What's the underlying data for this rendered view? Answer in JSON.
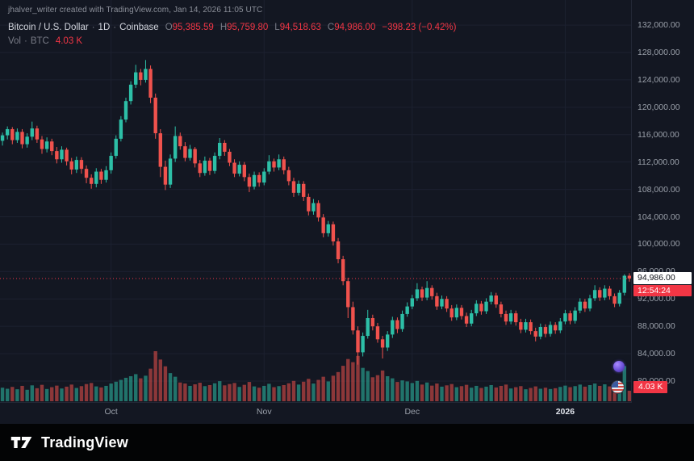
{
  "attribution": "jhalver_writer created with TradingView.com, Jan 14, 2026 11:05 UTC",
  "legend": {
    "symbol": "Bitcoin / U.S. Dollar",
    "separator": "·",
    "interval": "1D",
    "exchange": "Coinbase",
    "ohlc": [
      {
        "label": "O",
        "value": "95,385.59"
      },
      {
        "label": "H",
        "value": "95,759.80"
      },
      {
        "label": "L",
        "value": "94,518.63"
      },
      {
        "label": "C",
        "value": "94,986.00"
      }
    ],
    "change": "−398.23 (−0.42%)",
    "volume_label": "Vol",
    "volume_symbol": "BTC",
    "volume_value": "4.03 K"
  },
  "badges": {
    "last_price": "94,986.00",
    "countdown": "12:54:24",
    "volume": "4.03 K"
  },
  "footer": {
    "brand": "TradingView"
  },
  "icons": {
    "event_markers": [
      {
        "name": "crypto-event-icon",
        "color": "#6b4fd8"
      },
      {
        "name": "us-economic-event-icon",
        "colors": [
          "#cf4a44",
          "#e8edf2",
          "#3c5ba0"
        ]
      }
    ],
    "brand_logo": "tradingview-17-logo"
  },
  "colors": {
    "background": "#131722",
    "footer_background": "#030405",
    "candle_up": "#2dbfa7",
    "candle_down": "#f0524d",
    "value_down_text": "#f23645",
    "grid": "#1c2130",
    "axis_text": "#9aa0aa",
    "legend_text": "#d1d4dc",
    "muted_text": "#787b86",
    "last_price_line": "#f23645",
    "price_badge_bg": "#ffffff",
    "countdown_badge_bg": "#f23645",
    "volume_badge_bg": "#f23645"
  },
  "chart_data": {
    "type": "candlestick",
    "symbol": "Bitcoin / U.S. Dollar",
    "interval": "1D",
    "exchange": "Coinbase",
    "units": {
      "price": "USD thousands",
      "volume": "K BTC"
    },
    "visible_price_range": [
      76818,
      135665
    ],
    "price_ticks": [
      {
        "value": 132000,
        "label": "132,000.00"
      },
      {
        "value": 128000,
        "label": "128,000.00"
      },
      {
        "value": 124000,
        "label": "124,000.00"
      },
      {
        "value": 120000,
        "label": "120,000.00"
      },
      {
        "value": 116000,
        "label": "116,000.00"
      },
      {
        "value": 112000,
        "label": "112,000.00"
      },
      {
        "value": 108000,
        "label": "108,000.00"
      },
      {
        "value": 104000,
        "label": "104,000.00"
      },
      {
        "value": 100000,
        "label": "100,000.00"
      },
      {
        "value": 96000,
        "label": "96,000.00"
      },
      {
        "value": 92000,
        "label": "92,000.00"
      },
      {
        "value": 88000,
        "label": "88,000.00"
      },
      {
        "value": 84000,
        "label": "84,000.00"
      },
      {
        "value": 80000,
        "label": "80,000.00"
      }
    ],
    "months": [
      {
        "text": "Oct",
        "index": 22
      },
      {
        "text": "Nov",
        "index": 53
      },
      {
        "text": "Dec",
        "index": 83
      },
      {
        "text": "2026",
        "index": 114,
        "emphasis": true
      }
    ],
    "last_price": 94986,
    "last_candle": {
      "o": 95385.59,
      "h": 95759.8,
      "l": 94518.63,
      "c": 94986.0,
      "change": -398.23,
      "change_pct": -0.42
    },
    "countdown": "12:54:24",
    "last_volume_k": 4.03,
    "candles": [
      [
        115.1,
        116.3,
        114.4,
        115.9,
        5.2
      ],
      [
        115.9,
        117.2,
        115.3,
        116.8,
        4.8
      ],
      [
        116.8,
        117.1,
        114.6,
        115.2,
        5.5
      ],
      [
        115.2,
        116.9,
        114.8,
        116.4,
        4.6
      ],
      [
        116.4,
        116.8,
        114.0,
        114.6,
        5.9
      ],
      [
        114.6,
        116.2,
        114.1,
        115.7,
        4.4
      ],
      [
        115.7,
        117.9,
        115.2,
        116.9,
        6.1
      ],
      [
        116.9,
        117.3,
        114.8,
        115.3,
        5.0
      ],
      [
        115.3,
        115.8,
        113.2,
        113.9,
        6.3
      ],
      [
        113.9,
        115.6,
        113.4,
        115.0,
        4.7
      ],
      [
        115.0,
        115.4,
        113.0,
        113.6,
        5.4
      ],
      [
        113.6,
        114.2,
        111.8,
        112.4,
        6.0
      ],
      [
        112.4,
        114.3,
        111.9,
        113.8,
        4.9
      ],
      [
        113.8,
        114.1,
        111.5,
        112.1,
        5.6
      ],
      [
        112.1,
        112.6,
        110.2,
        110.9,
        6.4
      ],
      [
        110.9,
        112.8,
        110.4,
        112.3,
        5.1
      ],
      [
        112.3,
        112.7,
        110.3,
        111.0,
        5.8
      ],
      [
        111.0,
        111.5,
        108.9,
        109.7,
        6.6
      ],
      [
        109.7,
        110.2,
        108.1,
        108.8,
        7.0
      ],
      [
        108.8,
        111.1,
        108.3,
        110.6,
        5.7
      ],
      [
        110.6,
        111.0,
        108.8,
        109.4,
        5.3
      ],
      [
        109.4,
        111.4,
        109.0,
        110.8,
        5.9
      ],
      [
        110.8,
        113.4,
        110.3,
        112.9,
        6.8
      ],
      [
        112.9,
        115.9,
        112.5,
        115.4,
        7.5
      ],
      [
        115.4,
        118.7,
        115.0,
        118.2,
        8.2
      ],
      [
        118.2,
        121.4,
        117.8,
        120.9,
        9.0
      ],
      [
        120.9,
        123.8,
        120.4,
        123.3,
        9.6
      ],
      [
        123.3,
        126.2,
        122.8,
        125.1,
        10.4
      ],
      [
        125.1,
        125.6,
        123.2,
        124.0,
        8.8
      ],
      [
        124.0,
        126.9,
        123.6,
        125.6,
        9.8
      ],
      [
        125.6,
        126.1,
        120.6,
        121.4,
        12.5
      ],
      [
        121.4,
        122.0,
        115.4,
        116.2,
        19.2
      ],
      [
        116.2,
        116.8,
        109.8,
        111.3,
        16.0
      ],
      [
        111.3,
        112.2,
        107.9,
        108.7,
        13.4
      ],
      [
        108.7,
        113.1,
        108.2,
        112.5,
        10.8
      ],
      [
        112.5,
        117.2,
        112.0,
        115.8,
        9.4
      ],
      [
        115.8,
        116.3,
        113.8,
        114.3,
        7.2
      ],
      [
        114.3,
        114.9,
        112.1,
        112.6,
        6.8
      ],
      [
        112.6,
        114.5,
        112.2,
        113.9,
        5.9
      ],
      [
        113.9,
        114.2,
        111.2,
        111.8,
        6.5
      ],
      [
        111.8,
        112.3,
        109.8,
        110.4,
        7.1
      ],
      [
        110.4,
        112.8,
        110.0,
        112.2,
        5.8
      ],
      [
        112.2,
        112.6,
        110.1,
        110.7,
        6.2
      ],
      [
        110.7,
        113.4,
        110.3,
        112.9,
        6.9
      ],
      [
        112.9,
        115.5,
        112.4,
        114.8,
        7.7
      ],
      [
        114.8,
        115.2,
        112.9,
        113.5,
        6.1
      ],
      [
        113.5,
        113.9,
        111.4,
        111.9,
        6.6
      ],
      [
        111.9,
        112.4,
        109.8,
        110.3,
        7.0
      ],
      [
        110.3,
        112.1,
        109.9,
        111.6,
        5.5
      ],
      [
        111.6,
        112.0,
        109.2,
        109.8,
        6.3
      ],
      [
        109.8,
        110.3,
        107.6,
        108.4,
        7.4
      ],
      [
        108.4,
        110.6,
        108.0,
        110.1,
        5.7
      ],
      [
        110.1,
        110.5,
        108.4,
        109.0,
        5.2
      ],
      [
        109.0,
        111.1,
        108.6,
        110.6,
        5.9
      ],
      [
        110.6,
        113.0,
        110.2,
        112.1,
        6.7
      ],
      [
        112.1,
        112.5,
        110.6,
        111.2,
        5.4
      ],
      [
        111.2,
        113.1,
        110.8,
        112.4,
        5.8
      ],
      [
        112.4,
        112.8,
        110.2,
        110.8,
        6.2
      ],
      [
        110.8,
        111.3,
        108.6,
        109.2,
        6.9
      ],
      [
        109.2,
        109.7,
        106.9,
        107.5,
        7.8
      ],
      [
        107.5,
        109.3,
        107.1,
        108.8,
        6.4
      ],
      [
        108.8,
        109.2,
        106.3,
        106.9,
        7.5
      ],
      [
        106.9,
        107.4,
        104.2,
        104.8,
        8.6
      ],
      [
        104.8,
        106.6,
        104.3,
        106.0,
        6.8
      ],
      [
        106.0,
        106.4,
        103.3,
        103.9,
        8.2
      ],
      [
        103.9,
        104.4,
        101.0,
        101.6,
        9.4
      ],
      [
        101.6,
        103.4,
        101.1,
        102.9,
        7.6
      ],
      [
        102.9,
        103.3,
        99.8,
        100.4,
        9.8
      ],
      [
        100.4,
        100.9,
        97.2,
        97.8,
        11.2
      ],
      [
        97.8,
        98.3,
        94.0,
        94.6,
        13.6
      ],
      [
        94.6,
        95.1,
        89.2,
        90.8,
        16.2
      ],
      [
        90.8,
        91.6,
        86.8,
        87.4,
        15.0
      ],
      [
        87.4,
        88.0,
        82.4,
        84.2,
        17.4
      ],
      [
        84.2,
        87.1,
        83.6,
        86.6,
        12.8
      ],
      [
        86.6,
        90.4,
        86.2,
        89.2,
        11.6
      ],
      [
        89.2,
        89.7,
        87.4,
        88.0,
        9.2
      ],
      [
        88.0,
        88.5,
        85.6,
        86.1,
        10.0
      ],
      [
        86.1,
        86.6,
        83.3,
        84.9,
        11.8
      ],
      [
        84.9,
        87.3,
        84.4,
        86.8,
        9.6
      ],
      [
        86.8,
        89.4,
        86.3,
        88.9,
        8.8
      ],
      [
        88.9,
        89.3,
        87.0,
        87.6,
        7.4
      ],
      [
        87.6,
        90.3,
        87.2,
        89.8,
        8.0
      ],
      [
        89.8,
        91.5,
        89.4,
        90.9,
        7.6
      ],
      [
        90.9,
        92.6,
        90.5,
        92.1,
        7.0
      ],
      [
        92.1,
        94.3,
        91.7,
        93.4,
        7.8
      ],
      [
        93.4,
        93.8,
        91.7,
        92.2,
        6.4
      ],
      [
        92.2,
        94.6,
        91.8,
        93.6,
        7.2
      ],
      [
        93.6,
        94.0,
        91.9,
        92.4,
        6.0
      ],
      [
        92.4,
        92.9,
        90.4,
        90.9,
        6.8
      ],
      [
        90.9,
        92.5,
        90.5,
        92.0,
        5.6
      ],
      [
        92.0,
        92.4,
        90.1,
        90.6,
        6.1
      ],
      [
        90.6,
        91.1,
        88.8,
        89.3,
        6.6
      ],
      [
        89.3,
        91.2,
        88.9,
        90.7,
        5.4
      ],
      [
        90.7,
        91.1,
        89.0,
        89.5,
        5.8
      ],
      [
        89.5,
        90.0,
        87.9,
        88.4,
        6.3
      ],
      [
        88.4,
        90.4,
        88.0,
        89.9,
        5.2
      ],
      [
        89.9,
        91.8,
        89.5,
        91.3,
        5.9
      ],
      [
        91.3,
        91.7,
        89.7,
        90.2,
        5.1
      ],
      [
        90.2,
        92.1,
        89.8,
        91.6,
        5.6
      ],
      [
        91.6,
        93.0,
        91.2,
        92.5,
        6.2
      ],
      [
        92.5,
        92.9,
        90.7,
        91.2,
        5.3
      ],
      [
        91.2,
        91.6,
        89.3,
        89.8,
        5.9
      ],
      [
        89.8,
        90.3,
        88.2,
        88.7,
        6.4
      ],
      [
        88.7,
        90.4,
        88.3,
        89.9,
        4.9
      ],
      [
        89.9,
        90.3,
        88.1,
        88.6,
        5.4
      ],
      [
        88.6,
        89.1,
        87.0,
        87.5,
        5.8
      ],
      [
        87.5,
        89.1,
        87.1,
        88.6,
        4.6
      ],
      [
        88.6,
        89.0,
        86.8,
        87.3,
        5.1
      ],
      [
        87.3,
        87.8,
        85.8,
        86.5,
        5.7
      ],
      [
        86.5,
        88.4,
        86.1,
        87.9,
        4.8
      ],
      [
        87.9,
        88.3,
        86.4,
        86.9,
        5.2
      ],
      [
        86.9,
        88.7,
        86.5,
        88.2,
        4.7
      ],
      [
        88.2,
        88.6,
        86.9,
        87.4,
        5.0
      ],
      [
        87.4,
        89.2,
        87.0,
        88.7,
        5.5
      ],
      [
        88.7,
        90.4,
        88.3,
        89.9,
        6.0
      ],
      [
        89.9,
        90.3,
        88.3,
        88.8,
        5.4
      ],
      [
        88.8,
        90.8,
        88.4,
        90.3,
        5.8
      ],
      [
        90.3,
        92.1,
        89.9,
        91.6,
        6.4
      ],
      [
        91.6,
        92.0,
        90.1,
        90.6,
        5.6
      ],
      [
        90.6,
        92.6,
        90.2,
        92.1,
        6.2
      ],
      [
        92.1,
        94.0,
        91.7,
        93.3,
        6.8
      ],
      [
        93.3,
        93.7,
        91.7,
        92.2,
        5.9
      ],
      [
        92.2,
        94.0,
        91.8,
        93.5,
        6.5
      ],
      [
        93.5,
        93.9,
        91.9,
        92.4,
        5.7
      ],
      [
        92.4,
        92.8,
        90.8,
        91.3,
        6.1
      ],
      [
        91.3,
        93.3,
        90.9,
        92.9,
        6.6
      ],
      [
        92.9,
        95.6,
        92.5,
        95.39,
        13.5
      ],
      [
        95.39,
        95.76,
        94.52,
        94.99,
        4.03
      ]
    ]
  }
}
